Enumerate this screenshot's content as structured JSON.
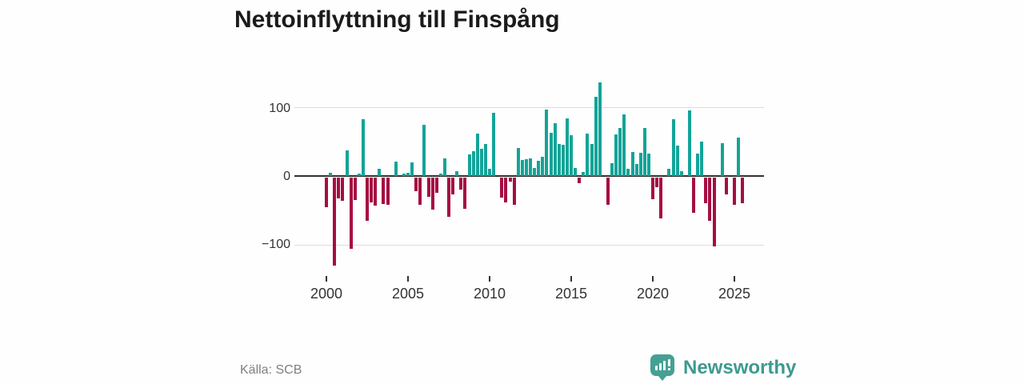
{
  "title": "Nettoinflyttning till Finspång",
  "source": "Källa: SCB",
  "branding": {
    "name": "Newsworthy"
  },
  "colors": {
    "positive": "#13a498",
    "negative": "#a50d42",
    "axis": "#333333",
    "grid": "#dcdcdc",
    "text": "#333333",
    "muted": "#808080",
    "brand": "#45a094",
    "title_text": "#1b1b1b"
  },
  "chart_data": {
    "type": "bar",
    "title": "Nettoinflyttning till Finspång",
    "x_unit": "quarter",
    "start_period": "2000Q1",
    "end_period": "2025Q3",
    "values": [
      -43,
      5,
      -128,
      -30,
      -34,
      37,
      -104,
      -32,
      3,
      82,
      -63,
      -36,
      -41,
      10,
      -38,
      -40,
      0,
      21,
      0,
      4,
      5,
      20,
      -20,
      -40,
      74,
      -28,
      -46,
      -22,
      4,
      26,
      -57,
      -24,
      7,
      -17,
      -45,
      31,
      36,
      62,
      40,
      47,
      10,
      92,
      0,
      -29,
      -36,
      -6,
      -40,
      41,
      23,
      24,
      26,
      12,
      22,
      28,
      97,
      63,
      77,
      47,
      45,
      84,
      59,
      12,
      -8,
      6,
      62,
      46,
      115,
      136,
      0,
      -39,
      19,
      61,
      70,
      90,
      10,
      35,
      17,
      34,
      70,
      32,
      -31,
      -14,
      -59,
      0,
      10,
      83,
      44,
      7,
      0,
      95,
      -51,
      33,
      50,
      -37,
      -63,
      -100,
      0,
      48,
      -24,
      0,
      -39,
      56,
      -37
    ],
    "xticks": [
      "2000",
      "2005",
      "2010",
      "2015",
      "2020",
      "2025"
    ],
    "yticks": [
      "100",
      "0",
      "−100"
    ],
    "ylim": [
      -140,
      150
    ],
    "grid": true,
    "legend": "none",
    "positive_color": "#13a498",
    "negative_color": "#a50d42",
    "source_label": "Källa: SCB"
  }
}
